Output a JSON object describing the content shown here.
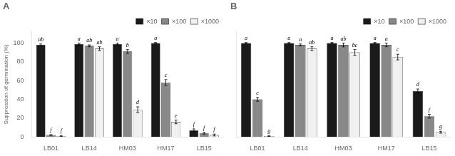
{
  "chart_data": [
    {
      "type": "bar",
      "title": "A",
      "categories": [
        "LB01",
        "LB14",
        "HM03",
        "HM17",
        "LB15"
      ],
      "ylabel": "Suppression of germination (%)",
      "series": [
        {
          "name": "×10",
          "color": "#1a1a1a",
          "values": [
            98,
            99,
            99,
            100,
            7
          ],
          "errors": [
            1,
            1,
            1,
            0.5,
            1.5
          ],
          "annotations": [
            "ab",
            "a",
            "a",
            "a",
            "f"
          ]
        },
        {
          "name": "×100",
          "color": "#888888",
          "values": [
            2,
            97,
            91,
            58,
            4
          ],
          "errors": [
            0.5,
            1,
            2,
            3,
            1
          ],
          "annotations": [
            "f",
            "ab",
            "b",
            "c",
            "f"
          ]
        },
        {
          "name": "×1000",
          "color": "#f0f0f0",
          "values": [
            1,
            94,
            29,
            16,
            2
          ],
          "errors": [
            0.5,
            2,
            3,
            2,
            1
          ],
          "annotations": [
            "f",
            "ab",
            "d",
            "e",
            "f"
          ]
        }
      ],
      "ylim": [
        0,
        112
      ],
      "yticks": [
        0,
        20,
        40,
        60,
        80,
        100
      ],
      "grid": false,
      "legend": "upper right"
    },
    {
      "type": "bar",
      "title": "B",
      "categories": [
        "LB01",
        "LB14",
        "HM03",
        "HM17",
        "LB15"
      ],
      "series": [
        {
          "name": "×10",
          "color": "#1a1a1a",
          "values": [
            100,
            100,
            100,
            100,
            49
          ],
          "errors": [
            0.5,
            0.5,
            0.5,
            0.5,
            2
          ],
          "annotations": [
            "a",
            "a",
            "a",
            "a",
            "d"
          ]
        },
        {
          "name": "×100",
          "color": "#888888",
          "values": [
            40,
            98,
            98,
            98,
            22
          ],
          "errors": [
            2,
            1,
            2,
            2,
            2
          ],
          "annotations": [
            "c",
            "a",
            "ab",
            "a",
            "f"
          ]
        },
        {
          "name": "×1000",
          "color": "#f0f0f0",
          "values": [
            1,
            94,
            90,
            85,
            5
          ],
          "errors": [
            0.5,
            2,
            3,
            3,
            1
          ],
          "annotations": [
            "g",
            "ab",
            "bc",
            "c",
            "g"
          ]
        }
      ],
      "ylim": [
        0,
        112
      ],
      "yticks": [
        0,
        20,
        40,
        60,
        80,
        100
      ],
      "grid": false,
      "legend": "upper right",
      "tick_labels": "x"
    }
  ]
}
